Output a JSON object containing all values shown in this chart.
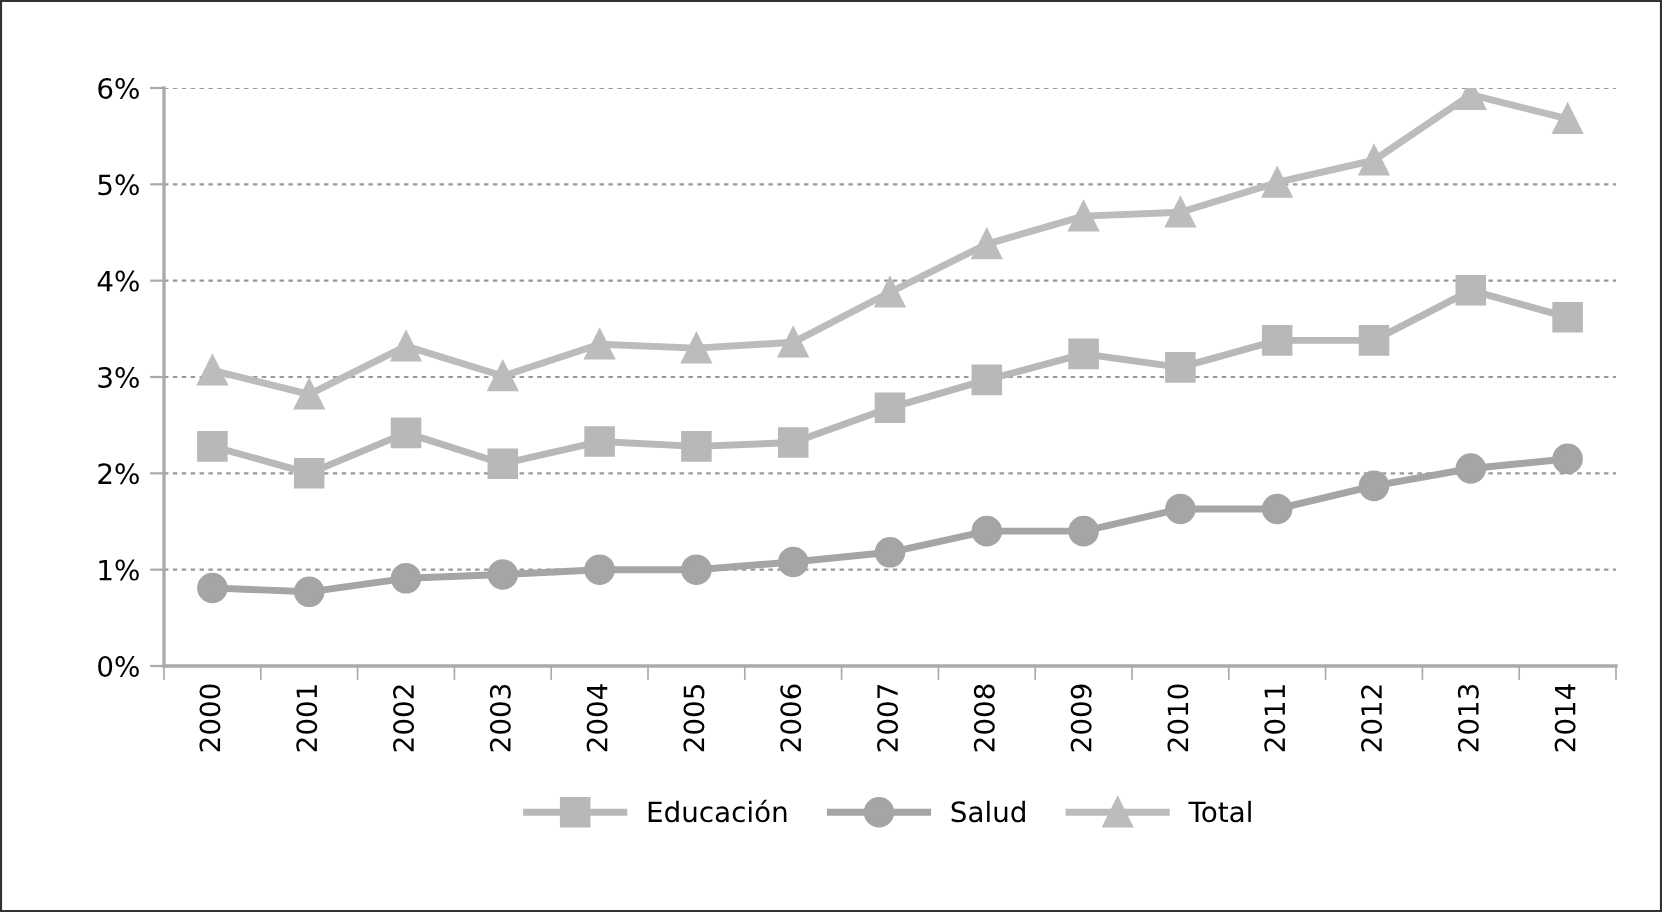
{
  "chart_data": {
    "type": "line",
    "categories": [
      "2000",
      "2001",
      "2002",
      "2003",
      "2004",
      "2005",
      "2006",
      "2007",
      "2008",
      "2009",
      "2010",
      "2011",
      "2012",
      "2013",
      "2014"
    ],
    "series": [
      {
        "name": "Educación",
        "color": "#b8b8ba",
        "marker": "square",
        "values": [
          2.28,
          2.0,
          2.42,
          2.1,
          2.33,
          2.28,
          2.32,
          2.68,
          2.97,
          3.24,
          3.1,
          3.38,
          3.38,
          3.9,
          3.62
        ]
      },
      {
        "name": "Salud",
        "color": "#a5a5a7",
        "marker": "circle",
        "values": [
          0.81,
          0.77,
          0.91,
          0.95,
          1.0,
          1.0,
          1.08,
          1.18,
          1.4,
          1.4,
          1.63,
          1.63,
          1.87,
          2.05,
          2.15
        ]
      },
      {
        "name": "Total",
        "color": "#bcbcbe",
        "marker": "triangle",
        "values": [
          3.07,
          2.82,
          3.32,
          3.01,
          3.34,
          3.3,
          3.36,
          3.88,
          4.38,
          4.67,
          4.71,
          5.02,
          5.25,
          5.93,
          5.68
        ]
      }
    ],
    "ylim": [
      0,
      6
    ],
    "yticks": [
      {
        "value": 0,
        "label": "0%"
      },
      {
        "value": 1,
        "label": "1%"
      },
      {
        "value": 2,
        "label": "2%"
      },
      {
        "value": 3,
        "label": "3%"
      },
      {
        "value": 4,
        "label": "4%"
      },
      {
        "value": 5,
        "label": "5%"
      },
      {
        "value": 6,
        "label": "6%"
      }
    ],
    "grid": "y",
    "legend": "bottom",
    "line_style": "solid"
  }
}
